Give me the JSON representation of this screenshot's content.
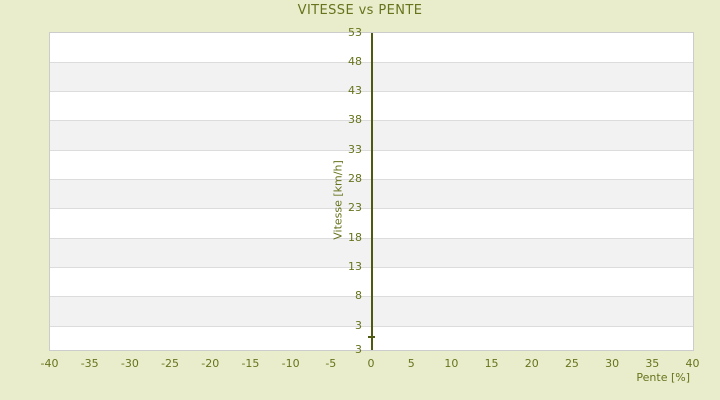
{
  "chart_data": {
    "type": "scatter",
    "title": "VITESSE vs PENTE",
    "xlabel": "Pente [%]",
    "ylabel": "Vitesse [km/h]",
    "x_ticks": [
      -40,
      -35,
      -30,
      -25,
      -20,
      -15,
      -10,
      -5,
      0,
      5,
      10,
      15,
      20,
      25,
      30,
      35,
      40
    ],
    "y_ticks": [
      53,
      48,
      43,
      38,
      33,
      28,
      23,
      18,
      13,
      8,
      3
    ],
    "y_axis_bottom_edge_label": "3",
    "xlim": [
      -40,
      40
    ],
    "ylim": [
      -1,
      53
    ],
    "points": [
      {
        "x": 0,
        "y": 1.2
      }
    ],
    "legend_position": "none",
    "grid": "horizontal-alternating-bands",
    "vertical_zero_axis": true
  },
  "colors": {
    "background": "#e9edcb",
    "text": "#68731d",
    "axis_line": "#4d5a10",
    "plot_background": "#ffffff",
    "band_alt": "#f2f2f2",
    "gridline": "#dcdcdc",
    "plot_border": "#cccccc"
  }
}
